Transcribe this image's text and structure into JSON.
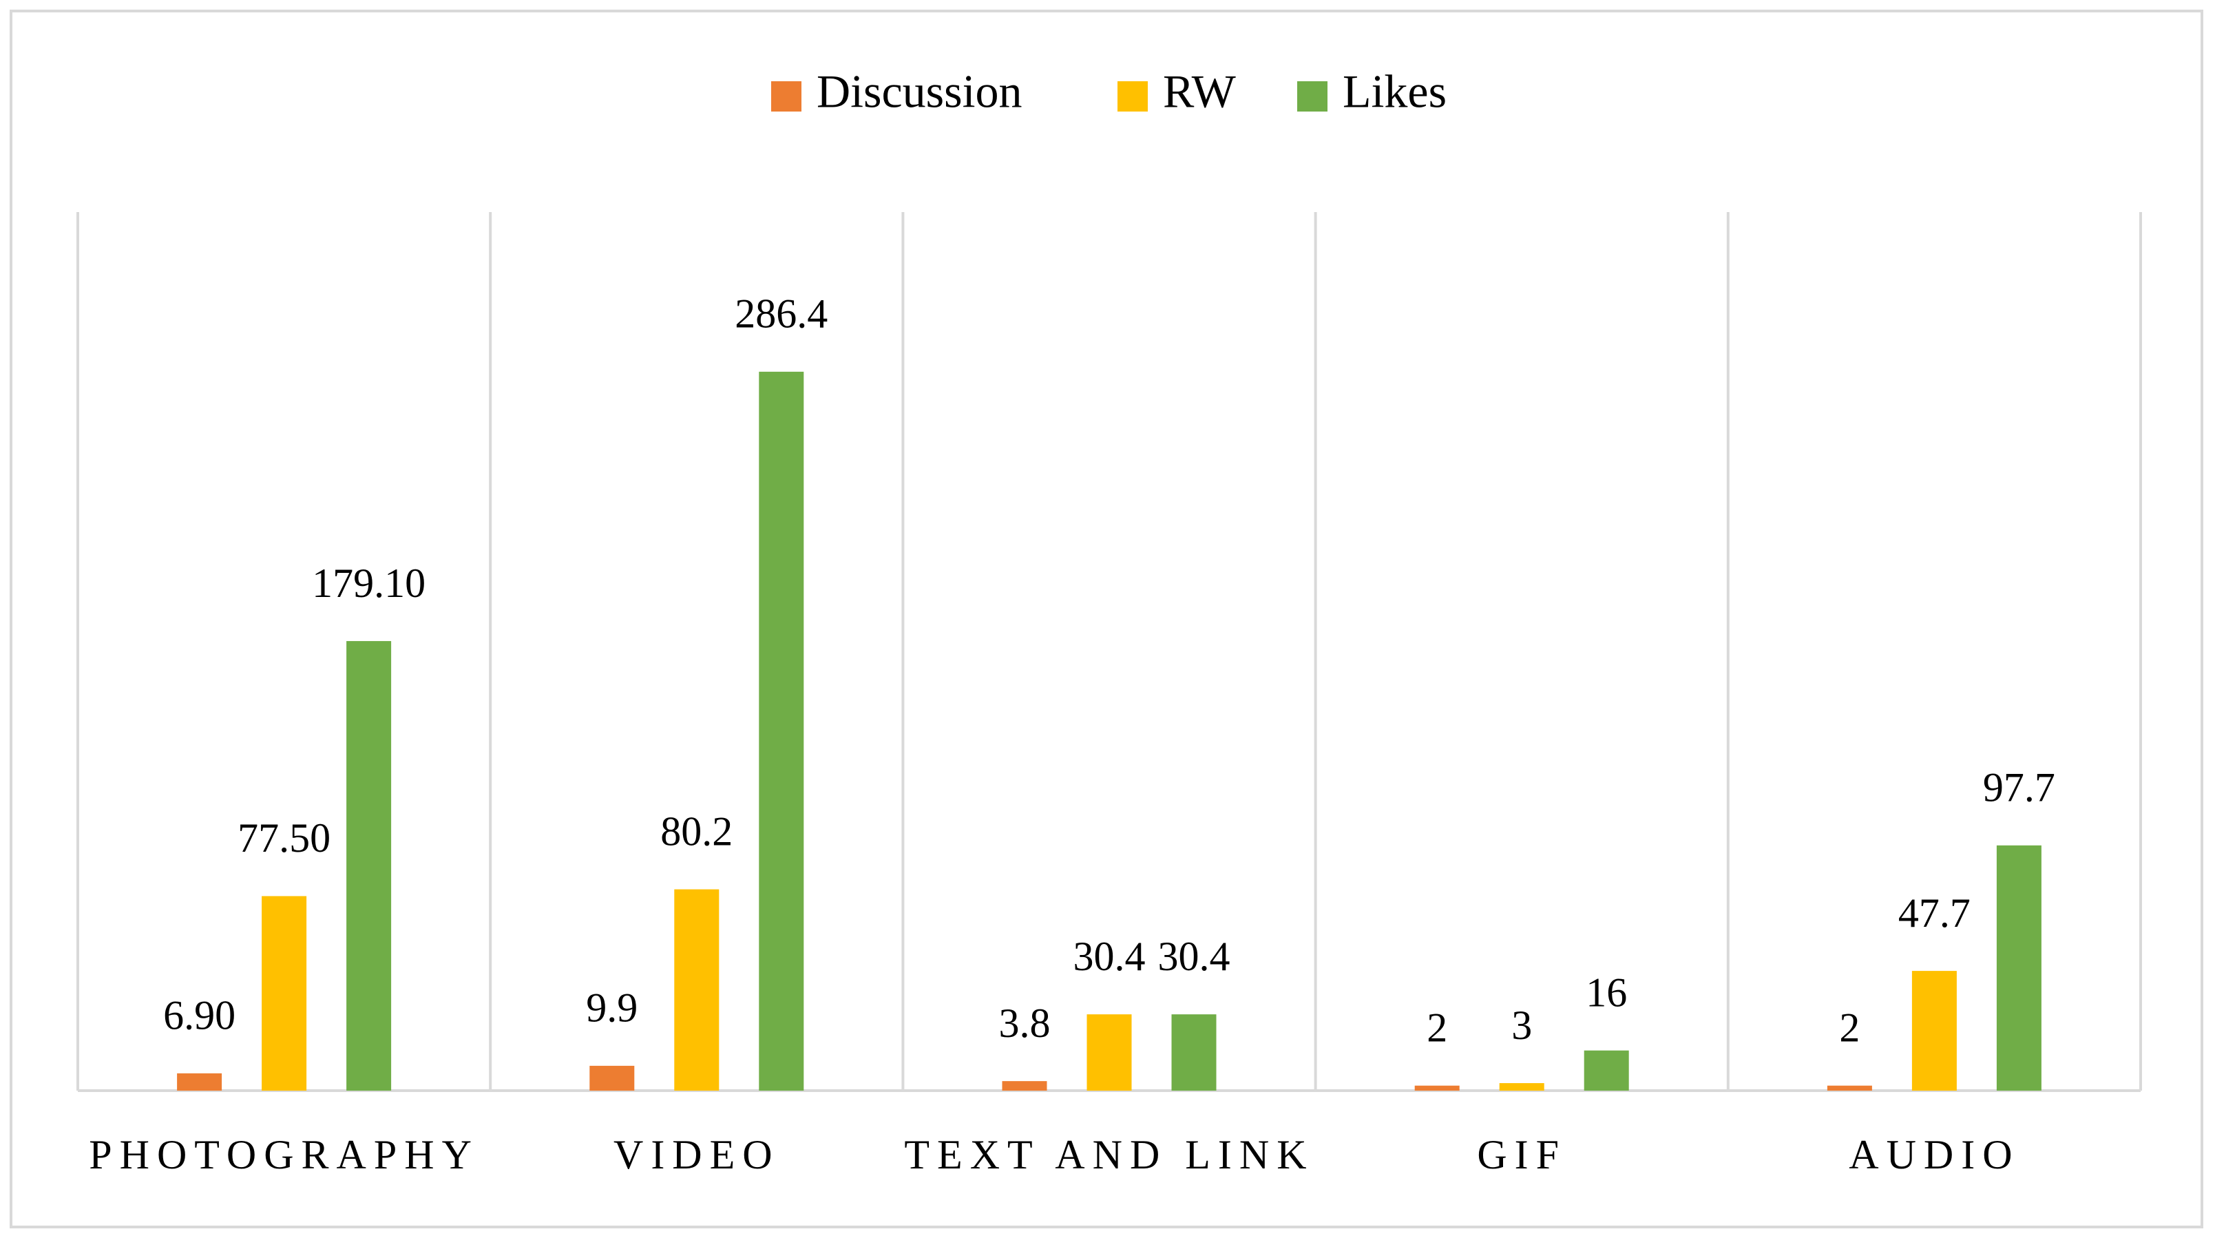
{
  "chart_data": {
    "type": "bar",
    "categories": [
      "PHOTOGRAPHY",
      "VIDEO",
      "TEXT AND LINK",
      "GIF",
      "AUDIO"
    ],
    "series": [
      {
        "name": "Discussion",
        "color": "#ed7d31",
        "values": [
          6.9,
          9.9,
          3.8,
          2,
          2
        ],
        "value_labels": [
          "6.90",
          "9.9",
          "3.8",
          "2",
          "2"
        ]
      },
      {
        "name": "RW",
        "color": "#ffc000",
        "values": [
          77.5,
          80.2,
          30.4,
          3,
          47.7
        ],
        "value_labels": [
          "77.50",
          "80.2",
          "30.4",
          "3",
          "47.7"
        ]
      },
      {
        "name": "Likes",
        "color": "#70ad47",
        "values": [
          179.1,
          286.4,
          30.4,
          16,
          97.7
        ],
        "value_labels": [
          "179.10",
          "286.4",
          "30.4",
          "16",
          "97.7"
        ]
      }
    ],
    "ylim": [
      0,
      350
    ],
    "legend": "top"
  }
}
